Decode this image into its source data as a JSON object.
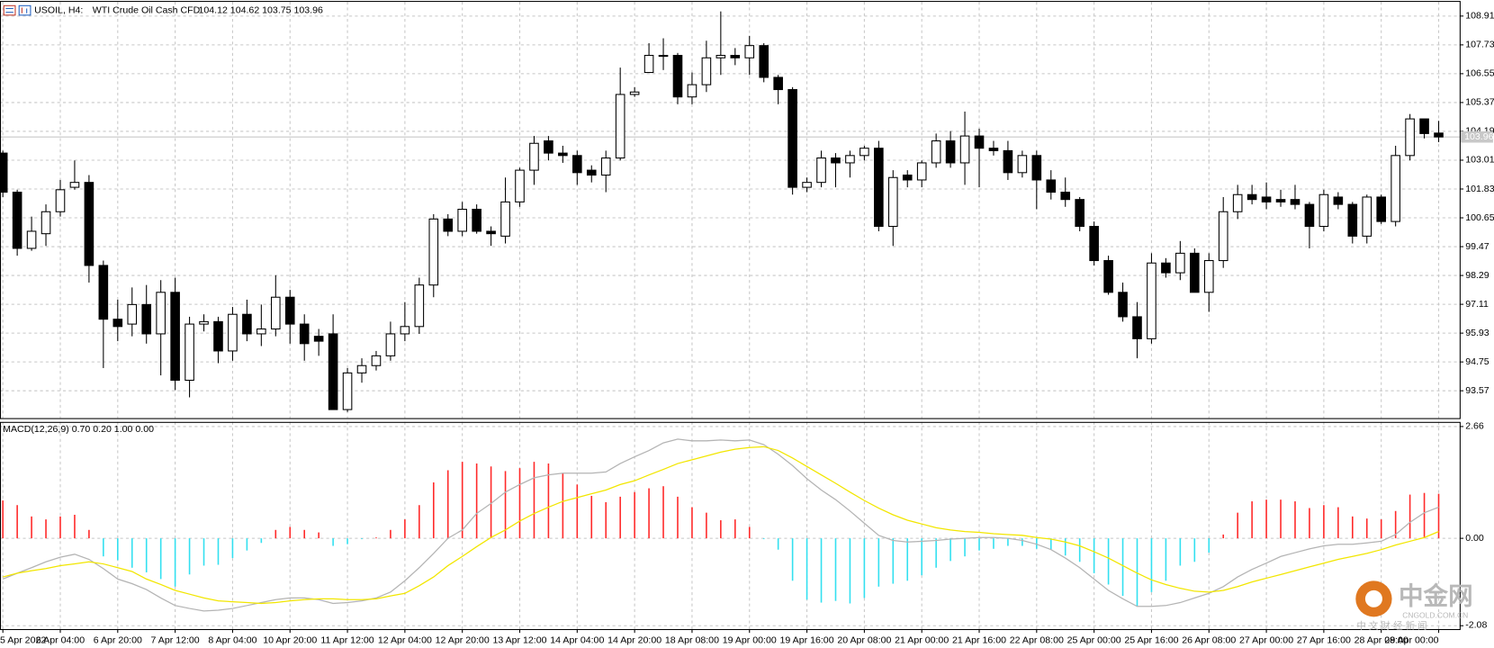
{
  "chart_data": {
    "type": "candlestick",
    "symbol": "USOIL, H4:",
    "description": "WTI Crude Oil Cash CFD",
    "ohlc_text": "104.12 104.62 103.75 103.96",
    "categories": [
      "5 Apr 2022",
      null,
      null,
      null,
      "6 Apr 04:00",
      null,
      null,
      null,
      "6 Apr 20:00",
      null,
      null,
      null,
      "7 Apr 12:00",
      null,
      null,
      null,
      "8 Apr 04:00",
      null,
      null,
      null,
      "10 Apr 20:00",
      null,
      null,
      null,
      "11 Apr 12:00",
      null,
      null,
      null,
      "12 Apr 04:00",
      null,
      null,
      null,
      "12 Apr 20:00",
      null,
      null,
      null,
      "13 Apr 12:00",
      null,
      null,
      null,
      "14 Apr 04:00",
      null,
      null,
      null,
      "14 Apr 20:00",
      null,
      null,
      null,
      "18 Apr 08:00",
      null,
      null,
      null,
      "19 Apr 00:00",
      null,
      null,
      null,
      "19 Apr 16:00",
      null,
      null,
      null,
      "20 Apr 08:00",
      null,
      null,
      null,
      "21 Apr 00:00",
      null,
      null,
      null,
      "21 Apr 16:00",
      null,
      null,
      null,
      "22 Apr 08:00",
      null,
      null,
      null,
      "25 Apr 00:00",
      null,
      null,
      null,
      "25 Apr 16:00",
      null,
      null,
      null,
      "26 Apr 08:00",
      null,
      null,
      null,
      "27 Apr 00:00",
      null,
      null,
      null,
      "27 Apr 16:00",
      null,
      null,
      null,
      "28 Apr 08:00",
      null,
      null,
      null,
      "29 Apr 00:00"
    ],
    "open": [
      103.3,
      101.7,
      99.4,
      100.0,
      100.9,
      101.9,
      102.1,
      98.7,
      96.5,
      96.3,
      97.1,
      95.9,
      97.6,
      94.0,
      96.3,
      96.4,
      95.2,
      96.7,
      95.9,
      96.1,
      97.4,
      96.3,
      95.8,
      95.9,
      92.8,
      94.3,
      94.6,
      95.0,
      95.9,
      96.2,
      97.9,
      100.6,
      100.1,
      101.0,
      100.1,
      99.9,
      101.3,
      102.6,
      103.8,
      103.3,
      103.2,
      102.6,
      102.4,
      103.1,
      105.7,
      106.6,
      107.3,
      107.3,
      105.6,
      106.1,
      107.2,
      107.3,
      107.2,
      107.7,
      106.4,
      105.9,
      101.9,
      102.1,
      103.1,
      102.9,
      103.2,
      103.5,
      100.3,
      102.4,
      102.2,
      102.9,
      103.8,
      102.9,
      104.0,
      103.5,
      103.4,
      102.5,
      103.2,
      102.2,
      101.7,
      101.4,
      100.3,
      98.9,
      97.6,
      96.6,
      95.7,
      98.8,
      98.4,
      99.2,
      97.6,
      98.9,
      100.9,
      101.6,
      101.5,
      101.4,
      101.4,
      101.2,
      100.3,
      101.5,
      101.2,
      99.9,
      101.5,
      100.5,
      103.2,
      104.7,
      104.12
    ],
    "high": [
      103.4,
      101.8,
      100.7,
      101.2,
      102.2,
      103.0,
      102.4,
      98.9,
      97.3,
      97.8,
      97.9,
      98.1,
      98.2,
      96.6,
      96.7,
      96.6,
      97.0,
      97.3,
      97.1,
      98.3,
      97.7,
      96.7,
      96.1,
      96.7,
      94.5,
      94.9,
      95.2,
      96.4,
      97.2,
      98.2,
      100.8,
      100.8,
      101.3,
      101.2,
      100.3,
      102.3,
      102.7,
      104.0,
      104.0,
      103.6,
      103.4,
      102.8,
      103.4,
      106.8,
      106.0,
      107.8,
      108.0,
      107.4,
      106.6,
      107.9,
      109.1,
      107.6,
      108.1,
      107.8,
      106.5,
      106.0,
      102.3,
      103.4,
      103.3,
      103.4,
      103.6,
      103.8,
      102.6,
      102.6,
      103.0,
      104.1,
      104.2,
      105.0,
      104.3,
      103.8,
      103.8,
      103.4,
      103.4,
      102.6,
      102.3,
      101.5,
      100.5,
      99.1,
      98.0,
      97.2,
      99.2,
      99.0,
      99.7,
      99.4,
      99.2,
      101.5,
      102.0,
      102.0,
      102.1,
      101.8,
      102.0,
      101.3,
      101.8,
      101.7,
      101.3,
      101.6,
      101.6,
      103.6,
      104.9,
      104.7,
      104.62
    ],
    "low": [
      101.5,
      99.1,
      99.3,
      99.5,
      100.7,
      101.8,
      98.0,
      94.5,
      95.6,
      95.8,
      95.5,
      94.2,
      93.6,
      93.3,
      96.0,
      94.7,
      94.8,
      95.6,
      95.4,
      95.8,
      95.5,
      94.8,
      95.0,
      92.8,
      92.7,
      93.9,
      94.4,
      94.8,
      95.6,
      95.9,
      97.4,
      99.9,
      99.9,
      100.0,
      99.5,
      99.6,
      101.1,
      102.0,
      103.0,
      102.9,
      102.0,
      102.1,
      101.7,
      103.0,
      105.6,
      106.6,
      106.7,
      105.3,
      105.3,
      105.8,
      106.5,
      106.9,
      106.5,
      106.2,
      105.3,
      101.6,
      101.7,
      101.9,
      101.9,
      102.3,
      103.0,
      100.1,
      99.5,
      101.9,
      101.9,
      102.7,
      102.7,
      102.0,
      101.9,
      103.2,
      102.2,
      102.3,
      101.0,
      101.4,
      101.1,
      100.1,
      98.7,
      97.5,
      96.4,
      94.9,
      95.5,
      98.2,
      98.1,
      97.6,
      96.8,
      98.6,
      100.6,
      101.2,
      101.0,
      101.1,
      101.0,
      99.4,
      100.1,
      101.0,
      99.6,
      99.6,
      100.4,
      100.3,
      103.0,
      103.9,
      103.75
    ],
    "close": [
      101.7,
      99.4,
      100.1,
      100.9,
      101.8,
      102.1,
      98.7,
      96.5,
      96.2,
      97.1,
      95.9,
      97.6,
      94.0,
      96.3,
      96.4,
      95.2,
      96.7,
      95.9,
      96.1,
      97.4,
      96.3,
      95.5,
      95.6,
      92.8,
      94.3,
      94.6,
      95.0,
      95.9,
      96.2,
      97.9,
      100.6,
      100.1,
      101.0,
      100.1,
      100.0,
      101.3,
      102.6,
      103.7,
      103.3,
      103.2,
      102.5,
      102.4,
      103.1,
      105.7,
      105.8,
      107.3,
      107.3,
      105.6,
      106.1,
      107.2,
      107.3,
      107.2,
      107.7,
      106.4,
      105.9,
      101.9,
      102.1,
      103.1,
      102.9,
      103.2,
      103.5,
      100.3,
      102.3,
      102.2,
      102.9,
      103.8,
      102.9,
      104.0,
      103.5,
      103.4,
      102.5,
      103.2,
      102.2,
      101.7,
      101.4,
      100.3,
      98.9,
      97.6,
      96.6,
      95.7,
      98.8,
      98.4,
      99.2,
      97.6,
      98.9,
      100.9,
      101.6,
      101.4,
      101.3,
      101.3,
      101.2,
      100.3,
      101.6,
      101.2,
      99.9,
      101.5,
      100.5,
      103.2,
      104.7,
      104.1,
      103.96
    ],
    "bull_color": "#ffffff",
    "bear_color": "#000000",
    "ylim": [
      92.45,
      109.49
    ],
    "yticks": [
      108.91,
      107.73,
      106.55,
      105.37,
      104.19,
      103.01,
      101.83,
      100.65,
      99.47,
      98.29,
      97.11,
      95.93,
      94.75,
      93.57
    ],
    "current_price": 103.96,
    "grid": true,
    "indicator": {
      "type": "macd",
      "label": "MACD(12,26,9) 0.70 0.20 1.00 0.00",
      "ylim": [
        -2.16,
        2.77
      ],
      "yticks": [
        2.66,
        {
          "value": 0,
          "label": "0.00"
        },
        -2.08
      ],
      "histogram": {
        "up_color": "#ff2a2a",
        "down_color": "#33e0f0",
        "values": [
          0.9,
          0.79,
          0.52,
          0.45,
          0.52,
          0.56,
          0.2,
          -0.43,
          -0.52,
          -0.7,
          -0.81,
          -0.97,
          -1.15,
          -0.86,
          -0.65,
          -0.63,
          -0.47,
          -0.29,
          -0.11,
          0.2,
          0.27,
          0.2,
          0.14,
          -0.18,
          -0.14,
          -0.02,
          0.02,
          0.2,
          0.45,
          0.79,
          1.33,
          1.62,
          1.82,
          1.78,
          1.71,
          1.6,
          1.67,
          1.82,
          1.78,
          1.55,
          1.28,
          1.01,
          0.86,
          0.99,
          1.1,
          1.19,
          1.24,
          0.99,
          0.74,
          0.61,
          0.43,
          0.45,
          0.27,
          -0.02,
          -0.27,
          -1.01,
          -1.46,
          -1.53,
          -1.49,
          -1.55,
          -1.42,
          -1.15,
          -1.08,
          -1.01,
          -0.88,
          -0.7,
          -0.54,
          -0.43,
          -0.29,
          -0.25,
          -0.18,
          -0.18,
          -0.25,
          -0.27,
          -0.41,
          -0.56,
          -0.83,
          -1.1,
          -1.37,
          -1.62,
          -1.28,
          -1.01,
          -0.65,
          -0.56,
          -0.34,
          0.09,
          0.61,
          0.88,
          0.92,
          0.92,
          0.88,
          0.72,
          0.79,
          0.74,
          0.52,
          0.47,
          0.45,
          0.65,
          1.04,
          1.08,
          1.06
        ]
      },
      "series": [
        {
          "color": "#b4b4b4",
          "values": [
            -0.97,
            -0.83,
            -0.7,
            -0.56,
            -0.45,
            -0.38,
            -0.5,
            -0.72,
            -0.97,
            -1.08,
            -1.22,
            -1.42,
            -1.6,
            -1.67,
            -1.73,
            -1.71,
            -1.67,
            -1.6,
            -1.53,
            -1.46,
            -1.42,
            -1.42,
            -1.46,
            -1.55,
            -1.53,
            -1.49,
            -1.42,
            -1.28,
            -1.01,
            -0.7,
            -0.36,
            0.0,
            0.2,
            0.59,
            0.83,
            1.1,
            1.28,
            1.44,
            1.51,
            1.55,
            1.55,
            1.55,
            1.58,
            1.78,
            1.94,
            2.09,
            2.27,
            2.36,
            2.32,
            2.32,
            2.34,
            2.32,
            2.34,
            2.23,
            2.0,
            1.73,
            1.42,
            1.15,
            0.92,
            0.65,
            0.36,
            0.07,
            -0.05,
            -0.09,
            -0.07,
            -0.05,
            -0.02,
            0.0,
            0.02,
            0.02,
            0.0,
            -0.05,
            -0.14,
            -0.27,
            -0.47,
            -0.7,
            -0.97,
            -1.24,
            -1.44,
            -1.62,
            -1.62,
            -1.6,
            -1.53,
            -1.42,
            -1.31,
            -1.15,
            -0.92,
            -0.74,
            -0.59,
            -0.43,
            -0.34,
            -0.25,
            -0.18,
            -0.14,
            -0.14,
            -0.11,
            -0.07,
            0.09,
            0.38,
            0.61,
            0.74
          ]
        },
        {
          "color": "#f2e600",
          "values": [
            -0.92,
            -0.83,
            -0.77,
            -0.72,
            -0.65,
            -0.61,
            -0.56,
            -0.61,
            -0.7,
            -0.79,
            -0.97,
            -1.1,
            -1.24,
            -1.33,
            -1.42,
            -1.49,
            -1.51,
            -1.53,
            -1.55,
            -1.53,
            -1.49,
            -1.46,
            -1.44,
            -1.44,
            -1.46,
            -1.46,
            -1.44,
            -1.37,
            -1.31,
            -1.13,
            -0.92,
            -0.65,
            -0.43,
            -0.2,
            0.02,
            0.2,
            0.41,
            0.59,
            0.74,
            0.88,
            0.97,
            1.06,
            1.15,
            1.28,
            1.37,
            1.51,
            1.64,
            1.78,
            1.87,
            1.96,
            2.05,
            2.12,
            2.16,
            2.18,
            2.09,
            1.91,
            1.71,
            1.51,
            1.31,
            1.1,
            0.9,
            0.72,
            0.56,
            0.43,
            0.34,
            0.25,
            0.2,
            0.16,
            0.14,
            0.11,
            0.09,
            0.07,
            0.02,
            -0.02,
            -0.09,
            -0.18,
            -0.32,
            -0.47,
            -0.65,
            -0.83,
            -0.99,
            -1.1,
            -1.19,
            -1.26,
            -1.28,
            -1.24,
            -1.15,
            -1.04,
            -0.95,
            -0.86,
            -0.77,
            -0.68,
            -0.59,
            -0.5,
            -0.43,
            -0.36,
            -0.27,
            -0.16,
            -0.07,
            0.02,
            0.16
          ]
        }
      ]
    },
    "watermark": {
      "brand": "中金网",
      "domain": "CNGOLD.COM.CN",
      "tagline": "中 文 财 经 新 闻"
    }
  }
}
